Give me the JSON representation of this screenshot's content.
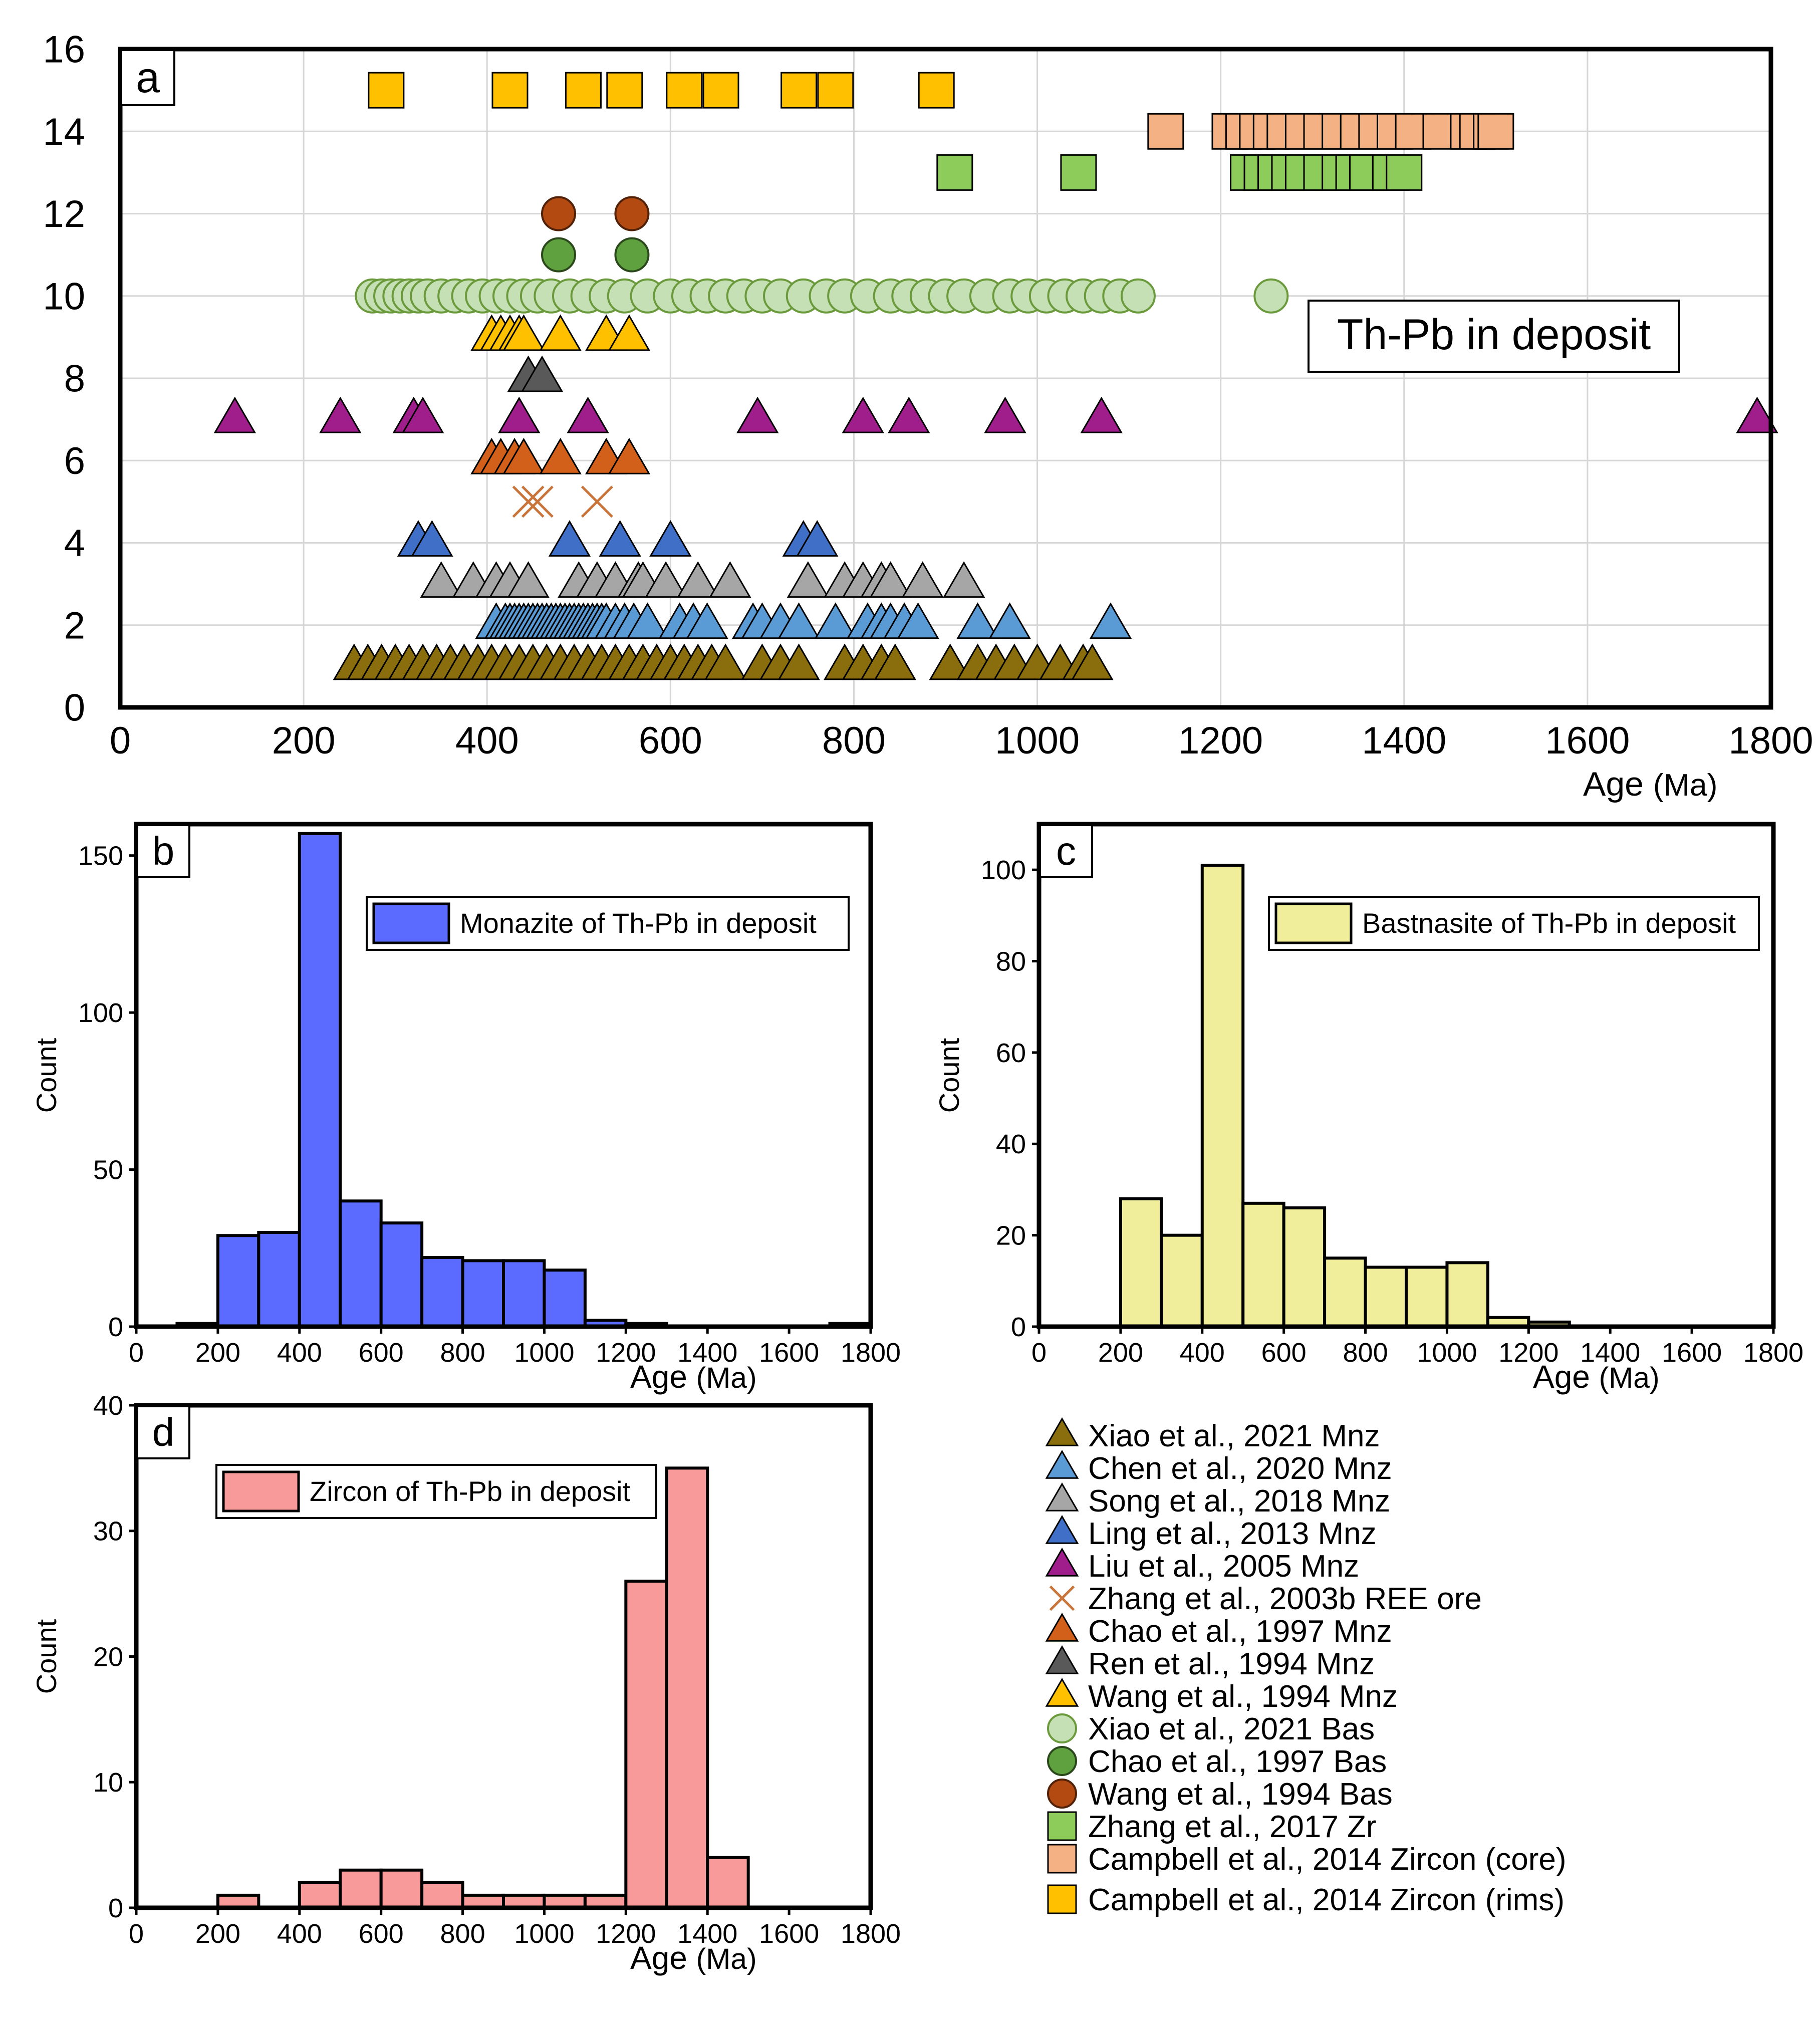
{
  "chart_data": [
    {
      "type": "scatter",
      "panel_label": "a",
      "annotation": "Th-Pb in deposit",
      "xlabel": "Age",
      "xunit": "(Ma)",
      "ylabel": "",
      "xlim": [
        0,
        1800
      ],
      "ylim": [
        0,
        16
      ],
      "xticks": [
        0,
        200,
        400,
        600,
        800,
        1000,
        1200,
        1400,
        1600,
        1800
      ],
      "yticks": [
        0,
        2,
        4,
        6,
        8,
        10,
        12,
        14,
        16
      ],
      "grid": true,
      "series": [
        {
          "name": "Xiao et al., 2021 Mnz",
          "marker": "triangle",
          "color": "#8a6e0e",
          "y": 1,
          "x": [
            255,
            270,
            285,
            300,
            315,
            330,
            345,
            360,
            375,
            390,
            405,
            420,
            435,
            450,
            465,
            480,
            495,
            510,
            525,
            540,
            555,
            570,
            585,
            600,
            615,
            630,
            645,
            660,
            700,
            720,
            740,
            790,
            810,
            830,
            845,
            905,
            935,
            955,
            975,
            1000,
            1025,
            1050,
            1060
          ]
        },
        {
          "name": "Chen et al., 2020 Mnz",
          "marker": "triangle",
          "color": "#5b9bd5",
          "y": 2,
          "x": [
            410,
            420,
            425,
            430,
            435,
            440,
            445,
            450,
            455,
            460,
            465,
            470,
            475,
            480,
            485,
            490,
            495,
            500,
            505,
            510,
            515,
            520,
            525,
            530,
            540,
            550,
            560,
            575,
            610,
            625,
            640,
            690,
            700,
            720,
            740,
            780,
            815,
            830,
            840,
            855,
            870,
            935,
            970,
            1080
          ]
        },
        {
          "name": "Song et al., 2018 Mnz",
          "marker": "triangle",
          "color": "#a6a6a6",
          "y": 3,
          "x": [
            350,
            385,
            410,
            425,
            445,
            500,
            520,
            540,
            565,
            570,
            595,
            630,
            665,
            750,
            790,
            810,
            830,
            840,
            875,
            920
          ]
        },
        {
          "name": "Ling et al., 2013 Mnz",
          "marker": "triangle",
          "color": "#3f6fc6",
          "y": 4,
          "x": [
            325,
            340,
            490,
            545,
            600,
            745,
            760
          ]
        },
        {
          "name": "Liu et al., 2005 Mnz",
          "marker": "triangle",
          "color": "#a01e8c",
          "y": 7,
          "x": [
            125,
            240,
            320,
            330,
            435,
            510,
            695,
            810,
            860,
            965,
            1070,
            1785
          ]
        },
        {
          "name": "Zhang et al., 2003b REE ore",
          "marker": "x",
          "color": "#c8743a",
          "y": 5,
          "x": [
            445,
            455,
            520
          ]
        },
        {
          "name": "Chao et al., 1997 Mnz",
          "marker": "triangle",
          "color": "#d2601a",
          "y": 6,
          "x": [
            405,
            415,
            430,
            440,
            480,
            530,
            555
          ]
        },
        {
          "name": "Ren et al., 1994 Mnz",
          "marker": "triangle",
          "color": "#595959",
          "y": 8,
          "x": [
            445,
            460
          ]
        },
        {
          "name": "Wang et al., 1994 Mnz",
          "marker": "triangle",
          "color": "#ffc000",
          "y": 9,
          "x": [
            405,
            415,
            425,
            435,
            440,
            480,
            530,
            555
          ]
        },
        {
          "name": "Xiao et al., 2021 Bas",
          "marker": "circle",
          "color": "#c5e0b4",
          "y": 10,
          "x": [
            275,
            285,
            295,
            305,
            315,
            325,
            335,
            350,
            365,
            380,
            395,
            410,
            425,
            440,
            455,
            470,
            490,
            510,
            530,
            550,
            575,
            600,
            620,
            640,
            660,
            680,
            700,
            720,
            745,
            770,
            790,
            815,
            840,
            860,
            880,
            900,
            920,
            945,
            970,
            990,
            1010,
            1030,
            1050,
            1070,
            1090,
            1110,
            1255
          ]
        },
        {
          "name": "Chao et al., 1997 Bas",
          "marker": "circle",
          "color": "#5fa13e",
          "y": 11,
          "x": [
            478,
            558
          ]
        },
        {
          "name": "Wang et al., 1994 Bas",
          "marker": "circle",
          "color": "#b34a12",
          "y": 12,
          "x": [
            478,
            558
          ]
        },
        {
          "name": "Zhang et al., 2017 Zr",
          "marker": "square",
          "color": "#8dcc5a",
          "y": 13,
          "x": [
            910,
            1045,
            1230,
            1245,
            1260,
            1275,
            1290,
            1310,
            1330,
            1345,
            1360,
            1385,
            1400
          ]
        },
        {
          "name": "Campbell et al., 2014 Zircon (core)",
          "marker": "square",
          "color": "#f4b183",
          "y": 14,
          "x": [
            1140,
            1210,
            1225,
            1240,
            1255,
            1270,
            1290,
            1310,
            1330,
            1350,
            1370,
            1390,
            1410,
            1440,
            1470,
            1480,
            1495,
            1500
          ]
        },
        {
          "name": "Campbell et al., 2014 Zircon (rims)",
          "marker": "square",
          "color": "#ffc000",
          "y": 15,
          "x": [
            290,
            425,
            505,
            550,
            615,
            655,
            740,
            780,
            890
          ]
        }
      ]
    },
    {
      "type": "bar",
      "panel_label": "b",
      "legend": "Monazite of Th-Pb in deposit",
      "color": "#5b6bff",
      "xlabel": "Age",
      "xunit": "(Ma)",
      "ylabel": "Count",
      "xlim": [
        0,
        1800
      ],
      "ylim": [
        0,
        160
      ],
      "xticks": [
        0,
        200,
        400,
        600,
        800,
        1000,
        1200,
        1400,
        1600,
        1800
      ],
      "yticks": [
        0,
        50,
        100,
        150
      ],
      "bin_starts": [
        100,
        200,
        300,
        400,
        500,
        600,
        700,
        800,
        900,
        1000,
        1100,
        1200,
        1300,
        1400,
        1500,
        1600,
        1700
      ],
      "bin_width": 100,
      "values": [
        1,
        29,
        30,
        157,
        40,
        33,
        22,
        21,
        21,
        18,
        2,
        1,
        0,
        0,
        0,
        0,
        1
      ]
    },
    {
      "type": "bar",
      "panel_label": "c",
      "legend": "Bastnasite of Th-Pb in deposit",
      "color": "#f0ee9a",
      "xlabel": "Age",
      "xunit": "(Ma)",
      "ylabel": "Count",
      "xlim": [
        0,
        1800
      ],
      "ylim": [
        0,
        110
      ],
      "xticks": [
        0,
        200,
        400,
        600,
        800,
        1000,
        1200,
        1400,
        1600,
        1800
      ],
      "yticks": [
        0,
        20,
        40,
        60,
        80,
        100
      ],
      "bin_starts": [
        200,
        300,
        400,
        500,
        600,
        700,
        800,
        900,
        1000,
        1100,
        1200
      ],
      "bin_width": 100,
      "values": [
        28,
        20,
        101,
        27,
        26,
        15,
        13,
        13,
        14,
        2,
        1
      ]
    },
    {
      "type": "bar",
      "panel_label": "d",
      "legend": "Zircon of Th-Pb in deposit",
      "color": "#f89a9a",
      "xlabel": "Age",
      "xunit": "(Ma)",
      "ylabel": "Count",
      "xlim": [
        0,
        1800
      ],
      "ylim": [
        0,
        40
      ],
      "xticks": [
        0,
        200,
        400,
        600,
        800,
        1000,
        1200,
        1400,
        1600,
        1800
      ],
      "yticks": [
        0,
        10,
        20,
        30,
        40
      ],
      "bin_starts": [
        200,
        300,
        400,
        500,
        600,
        700,
        800,
        900,
        1000,
        1100,
        1200,
        1300,
        1400
      ],
      "bin_width": 100,
      "values": [
        1,
        0,
        2,
        3,
        3,
        2,
        1,
        1,
        1,
        1,
        26,
        35,
        4
      ]
    }
  ]
}
